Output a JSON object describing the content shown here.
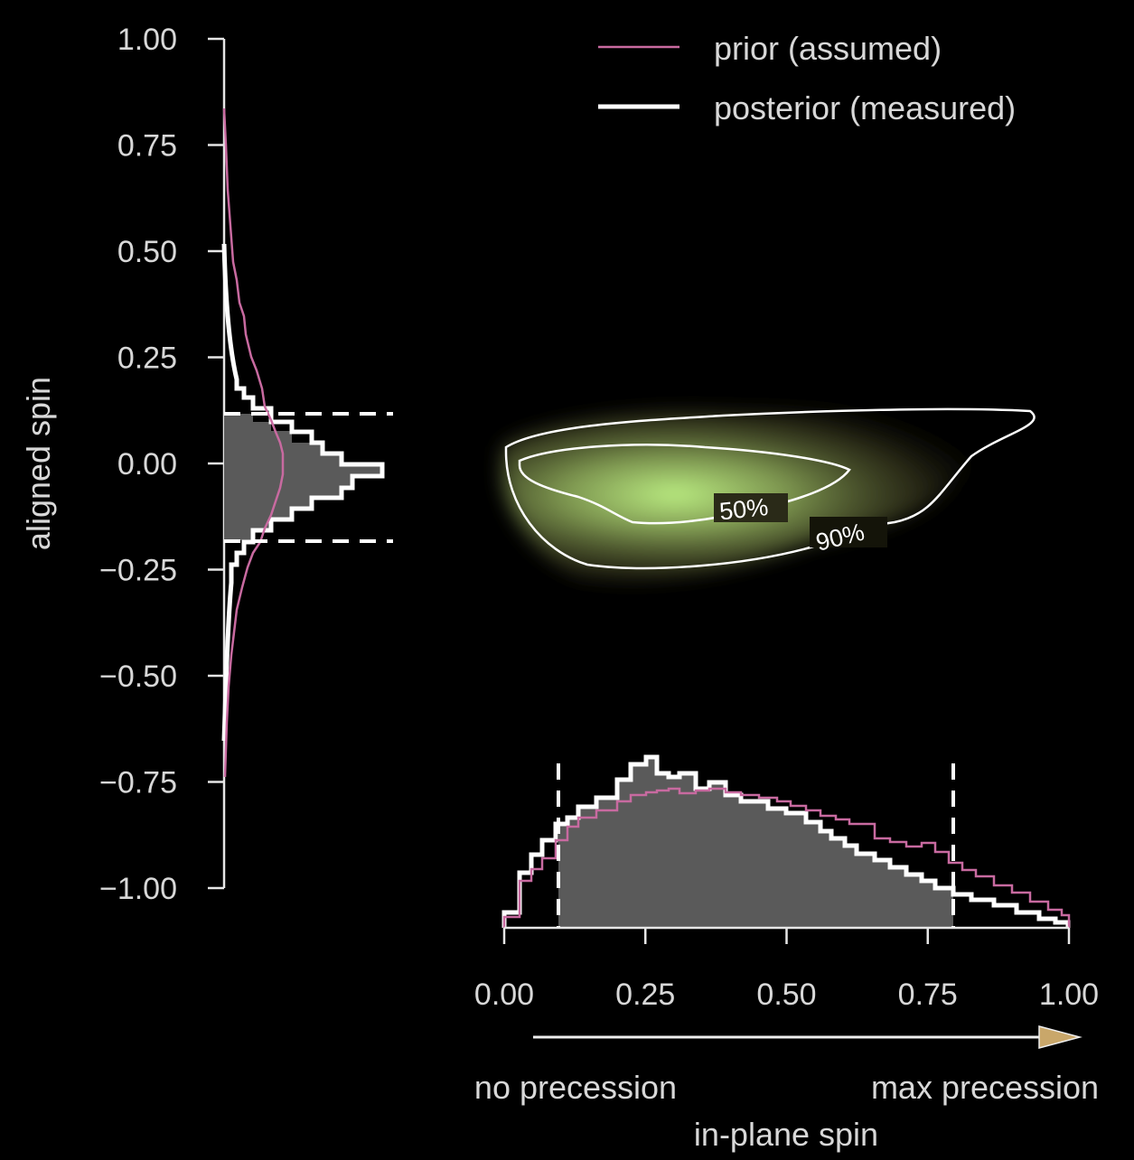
{
  "chart_data": {
    "type": "histogram",
    "legend": [
      {
        "label": "prior (assumed)",
        "color": "#c86aa0"
      },
      {
        "label": "posterior (measured)",
        "color": "#ffffff"
      }
    ],
    "y_axis": {
      "label": "aligned spin",
      "ticks": [
        "1.00",
        "0.75",
        "0.50",
        "0.25",
        "0.00",
        "−0.25",
        "−0.50",
        "−0.75",
        "−1.00"
      ],
      "range": [
        -1.0,
        1.0
      ]
    },
    "x_axis": {
      "label": "in-plane spin",
      "ticks": [
        "0.00",
        "0.25",
        "0.50",
        "0.75",
        "1.00"
      ],
      "range": [
        0.0,
        1.0
      ],
      "arrow_left_label": "no precession",
      "arrow_right_label": "max precession"
    },
    "aligned_spin_histogram": {
      "posterior_90_interval": [
        -0.18,
        0.12
      ],
      "bins": [
        -0.3,
        -0.27,
        -0.24,
        -0.21,
        -0.18,
        -0.15,
        -0.12,
        -0.09,
        -0.06,
        -0.03,
        0.0,
        0.03,
        0.06,
        0.09,
        0.12,
        0.15,
        0.18
      ],
      "posterior_density": [
        0.06,
        0.09,
        0.13,
        0.22,
        0.38,
        0.72,
        1.14,
        1.45,
        1.72,
        1.85,
        1.78,
        1.55,
        1.18,
        0.78,
        0.45,
        0.22
      ],
      "prior_density": [
        0.3,
        0.35,
        0.42,
        0.5,
        0.56,
        0.6,
        0.62,
        0.63,
        0.64,
        0.65,
        0.64,
        0.62,
        0.6,
        0.55,
        0.5,
        0.45
      ],
      "posterior_tail_top": 0.42,
      "posterior_tail_bottom": -0.4
    },
    "in_plane_spin_histogram": {
      "posterior_90_interval": [
        0.09,
        0.79
      ],
      "bin_width": 0.025,
      "posterior_density": [
        0.2,
        0.35,
        0.5,
        0.62,
        0.78,
        0.86,
        0.9,
        0.94,
        0.99,
        1.0,
        0.98,
        0.98,
        0.99,
        0.92,
        0.9,
        0.88,
        0.86,
        0.84,
        0.83,
        0.8,
        0.78,
        0.76,
        0.74,
        0.72,
        0.7,
        0.67,
        0.64,
        0.61,
        0.58,
        0.55,
        0.52,
        0.49,
        0.45,
        0.42,
        0.39,
        0.36,
        0.33,
        0.3,
        0.27,
        0.24
      ],
      "prior_density": [
        0.15,
        0.3,
        0.48,
        0.6,
        0.68,
        0.72,
        0.75,
        0.77,
        0.78,
        0.79,
        0.79,
        0.79,
        0.79,
        0.78,
        0.78,
        0.77,
        0.77,
        0.76,
        0.75,
        0.74,
        0.73,
        0.72,
        0.71,
        0.69,
        0.67,
        0.66,
        0.64,
        0.62,
        0.6,
        0.58,
        0.56,
        0.54,
        0.51,
        0.48,
        0.45,
        0.4,
        0.35,
        0.3,
        0.24,
        0.15
      ]
    },
    "joint_posterior": {
      "contours": [
        "50%",
        "90%"
      ]
    }
  }
}
